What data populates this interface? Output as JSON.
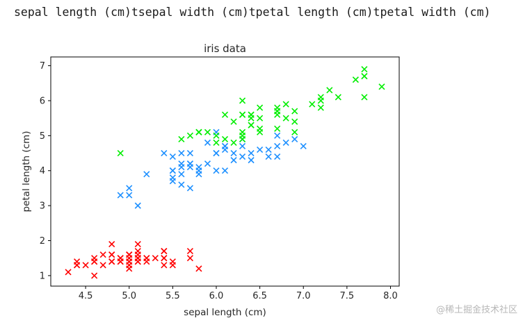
{
  "console_output": "sepal length (cm)tsepal width (cm)tpetal length (cm)tpetal width (cm)",
  "watermark": "@稀土掘金技术社区",
  "chart_data": {
    "type": "scatter",
    "title": "iris data",
    "xlabel": "sepal length (cm)",
    "ylabel": "petal length (cm)",
    "xlim": [
      4.1,
      8.1
    ],
    "ylim": [
      0.7,
      7.25
    ],
    "xticks": [
      4.5,
      5.0,
      5.5,
      6.0,
      6.5,
      7.0,
      7.5,
      8.0
    ],
    "yticks": [
      1,
      2,
      3,
      4,
      5,
      6,
      7
    ],
    "marker": "x",
    "grid": false,
    "series": [
      {
        "color": "#ff0000",
        "points": [
          [
            5.1,
            1.4
          ],
          [
            4.9,
            1.4
          ],
          [
            4.7,
            1.3
          ],
          [
            4.6,
            1.5
          ],
          [
            5.0,
            1.4
          ],
          [
            5.4,
            1.7
          ],
          [
            4.6,
            1.4
          ],
          [
            5.0,
            1.5
          ],
          [
            4.4,
            1.4
          ],
          [
            4.9,
            1.5
          ],
          [
            5.4,
            1.5
          ],
          [
            4.8,
            1.6
          ],
          [
            4.8,
            1.4
          ],
          [
            4.3,
            1.1
          ],
          [
            5.8,
            1.2
          ],
          [
            5.7,
            1.5
          ],
          [
            5.4,
            1.3
          ],
          [
            5.1,
            1.4
          ],
          [
            5.7,
            1.7
          ],
          [
            5.1,
            1.5
          ],
          [
            5.4,
            1.7
          ],
          [
            5.1,
            1.5
          ],
          [
            4.6,
            1.0
          ],
          [
            5.1,
            1.7
          ],
          [
            4.8,
            1.9
          ],
          [
            5.0,
            1.6
          ],
          [
            5.0,
            1.6
          ],
          [
            5.2,
            1.5
          ],
          [
            5.2,
            1.4
          ],
          [
            4.7,
            1.6
          ],
          [
            4.8,
            1.6
          ],
          [
            5.4,
            1.5
          ],
          [
            5.2,
            1.5
          ],
          [
            5.5,
            1.4
          ],
          [
            4.9,
            1.5
          ],
          [
            5.0,
            1.2
          ],
          [
            5.5,
            1.3
          ],
          [
            4.9,
            1.4
          ],
          [
            4.4,
            1.3
          ],
          [
            5.1,
            1.5
          ],
          [
            5.0,
            1.3
          ],
          [
            4.5,
            1.3
          ],
          [
            4.4,
            1.3
          ],
          [
            5.0,
            1.6
          ],
          [
            5.1,
            1.9
          ],
          [
            4.8,
            1.4
          ],
          [
            5.1,
            1.6
          ],
          [
            4.6,
            1.4
          ],
          [
            5.3,
            1.5
          ],
          [
            5.0,
            1.4
          ]
        ]
      },
      {
        "color": "#1e90ff",
        "points": [
          [
            7.0,
            4.7
          ],
          [
            6.4,
            4.5
          ],
          [
            6.9,
            4.9
          ],
          [
            5.5,
            4.0
          ],
          [
            6.5,
            4.6
          ],
          [
            5.7,
            4.5
          ],
          [
            6.3,
            4.7
          ],
          [
            4.9,
            3.3
          ],
          [
            6.6,
            4.6
          ],
          [
            5.2,
            3.9
          ],
          [
            5.0,
            3.5
          ],
          [
            5.9,
            4.2
          ],
          [
            6.0,
            4.0
          ],
          [
            6.1,
            4.7
          ],
          [
            5.6,
            3.6
          ],
          [
            6.7,
            4.4
          ],
          [
            5.6,
            4.5
          ],
          [
            5.8,
            4.1
          ],
          [
            6.2,
            4.5
          ],
          [
            5.6,
            3.9
          ],
          [
            5.9,
            4.8
          ],
          [
            6.1,
            4.0
          ],
          [
            6.3,
            4.9
          ],
          [
            6.1,
            4.7
          ],
          [
            6.4,
            4.3
          ],
          [
            6.6,
            4.4
          ],
          [
            6.8,
            4.8
          ],
          [
            6.7,
            5.0
          ],
          [
            6.0,
            4.5
          ],
          [
            5.7,
            3.5
          ],
          [
            5.5,
            3.8
          ],
          [
            5.5,
            3.7
          ],
          [
            5.8,
            3.9
          ],
          [
            6.0,
            5.1
          ],
          [
            5.4,
            4.5
          ],
          [
            6.0,
            4.5
          ],
          [
            6.7,
            4.7
          ],
          [
            6.3,
            4.4
          ],
          [
            5.6,
            4.1
          ],
          [
            5.5,
            4.0
          ],
          [
            5.5,
            4.4
          ],
          [
            6.1,
            4.6
          ],
          [
            5.8,
            4.0
          ],
          [
            5.0,
            3.3
          ],
          [
            5.6,
            4.2
          ],
          [
            5.7,
            4.2
          ],
          [
            5.7,
            4.2
          ],
          [
            6.2,
            4.3
          ],
          [
            5.1,
            3.0
          ],
          [
            5.7,
            4.1
          ]
        ]
      },
      {
        "color": "#00ee00",
        "points": [
          [
            6.3,
            6.0
          ],
          [
            5.8,
            5.1
          ],
          [
            7.1,
            5.9
          ],
          [
            6.3,
            5.6
          ],
          [
            6.5,
            5.8
          ],
          [
            7.6,
            6.6
          ],
          [
            4.9,
            4.5
          ],
          [
            7.3,
            6.3
          ],
          [
            6.7,
            5.8
          ],
          [
            7.2,
            6.1
          ],
          [
            6.5,
            5.1
          ],
          [
            6.4,
            5.3
          ],
          [
            6.8,
            5.5
          ],
          [
            5.7,
            5.0
          ],
          [
            5.8,
            5.1
          ],
          [
            6.4,
            5.3
          ],
          [
            6.5,
            5.5
          ],
          [
            7.7,
            6.7
          ],
          [
            7.7,
            6.9
          ],
          [
            6.0,
            5.0
          ],
          [
            6.9,
            5.7
          ],
          [
            5.6,
            4.9
          ],
          [
            7.7,
            6.7
          ],
          [
            6.3,
            4.9
          ],
          [
            6.7,
            5.7
          ],
          [
            7.2,
            6.0
          ],
          [
            6.2,
            4.8
          ],
          [
            6.1,
            4.9
          ],
          [
            6.4,
            5.6
          ],
          [
            7.2,
            5.8
          ],
          [
            7.4,
            6.1
          ],
          [
            7.9,
            6.4
          ],
          [
            6.4,
            5.6
          ],
          [
            6.3,
            5.1
          ],
          [
            6.1,
            5.6
          ],
          [
            7.7,
            6.1
          ],
          [
            6.3,
            5.6
          ],
          [
            6.4,
            5.5
          ],
          [
            6.0,
            4.8
          ],
          [
            6.9,
            5.4
          ],
          [
            6.7,
            5.6
          ],
          [
            6.9,
            5.1
          ],
          [
            5.8,
            5.1
          ],
          [
            6.8,
            5.9
          ],
          [
            6.7,
            5.7
          ],
          [
            6.7,
            5.2
          ],
          [
            6.3,
            5.0
          ],
          [
            6.5,
            5.2
          ],
          [
            6.2,
            5.4
          ],
          [
            5.9,
            5.1
          ]
        ]
      }
    ]
  }
}
